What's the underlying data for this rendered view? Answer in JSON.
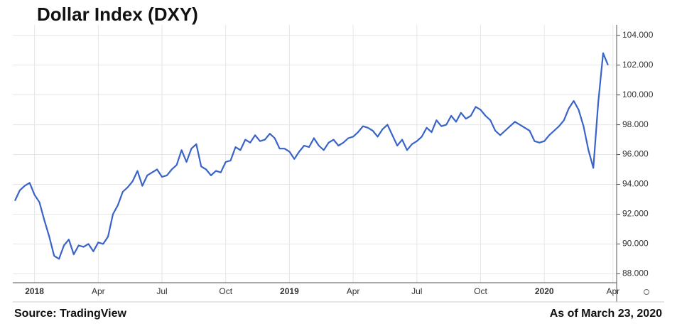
{
  "chart_data": {
    "type": "line",
    "title": "Dollar Index (DXY)",
    "source": "Source: TradingView",
    "as_of": "As of March 23, 2020",
    "categories": [
      null,
      null,
      null,
      null,
      "2018",
      null,
      null,
      null,
      null,
      null,
      null,
      null,
      null,
      null,
      null,
      null,
      null,
      "Apr",
      null,
      null,
      null,
      null,
      null,
      null,
      null,
      null,
      null,
      null,
      null,
      null,
      "Jul",
      null,
      null,
      null,
      null,
      null,
      null,
      null,
      null,
      null,
      null,
      null,
      null,
      "Oct",
      null,
      null,
      null,
      null,
      null,
      null,
      null,
      null,
      null,
      null,
      null,
      null,
      "2019",
      null,
      null,
      null,
      null,
      null,
      null,
      null,
      null,
      null,
      null,
      null,
      null,
      "Apr",
      null,
      null,
      null,
      null,
      null,
      null,
      null,
      null,
      null,
      null,
      null,
      null,
      "Jul",
      null,
      null,
      null,
      null,
      null,
      null,
      null,
      null,
      null,
      null,
      null,
      null,
      "Oct",
      null,
      null,
      null,
      null,
      null,
      null,
      null,
      null,
      null,
      null,
      null,
      null,
      "2020",
      null,
      null,
      null,
      null,
      null,
      null,
      null,
      null,
      null,
      null,
      null,
      null,
      null,
      "Apr"
    ],
    "series": [
      {
        "name": "DXY",
        "color": "#3a63c9",
        "values": [
          92.9,
          93.6,
          93.9,
          94.1,
          93.3,
          92.8,
          91.6,
          90.5,
          89.2,
          89.0,
          89.9,
          90.3,
          89.3,
          89.9,
          89.8,
          90.0,
          89.5,
          90.1,
          90.0,
          90.5,
          92.0,
          92.6,
          93.5,
          93.8,
          94.2,
          94.9,
          93.9,
          94.6,
          94.8,
          95.0,
          94.5,
          94.6,
          95.0,
          95.3,
          96.3,
          95.5,
          96.4,
          96.7,
          95.2,
          95.0,
          94.6,
          94.9,
          94.8,
          95.5,
          95.6,
          96.5,
          96.3,
          97.0,
          96.8,
          97.3,
          96.9,
          97.0,
          97.4,
          97.1,
          96.4,
          96.4,
          96.2,
          95.7,
          96.2,
          96.6,
          96.5,
          97.1,
          96.6,
          96.3,
          96.8,
          97.0,
          96.6,
          96.8,
          97.1,
          97.2,
          97.5,
          97.9,
          97.8,
          97.6,
          97.2,
          97.7,
          98.0,
          97.3,
          96.6,
          97.0,
          96.3,
          96.7,
          96.9,
          97.2,
          97.8,
          97.5,
          98.3,
          97.9,
          98.0,
          98.6,
          98.2,
          98.8,
          98.4,
          98.6,
          99.2,
          99.0,
          98.6,
          98.3,
          97.6,
          97.3,
          97.6,
          97.9,
          98.2,
          98.0,
          97.8,
          97.6,
          96.9,
          96.8,
          96.9,
          97.3,
          97.6,
          97.9,
          98.3,
          99.1,
          99.6,
          99.0,
          97.9,
          96.3,
          95.1,
          99.5,
          102.8,
          102.0,
          null
        ]
      }
    ],
    "ylim": [
      87.4,
      104.7
    ],
    "yticks": [
      {
        "value": 88,
        "label": "88.000"
      },
      {
        "value": 90,
        "label": "90.000"
      },
      {
        "value": 92,
        "label": "92.000"
      },
      {
        "value": 94,
        "label": "94.000"
      },
      {
        "value": 96,
        "label": "96.000"
      },
      {
        "value": 98,
        "label": "98.000"
      },
      {
        "value": 100,
        "label": "100.000"
      },
      {
        "value": 102,
        "label": "102.000"
      },
      {
        "value": 104,
        "label": "104.000"
      }
    ],
    "grid": true
  }
}
